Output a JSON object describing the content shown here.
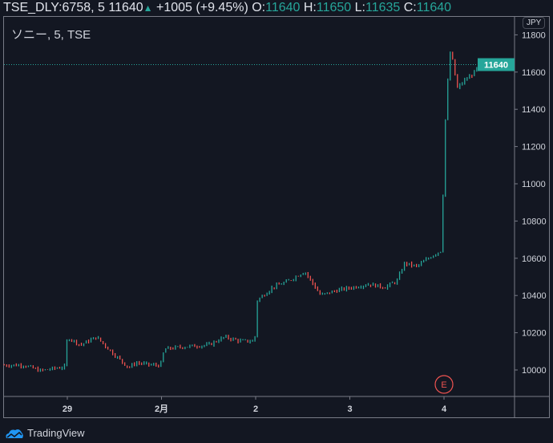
{
  "header": {
    "symbol": "TSE_DLY:6758, 5",
    "last": "11640",
    "change": "+1005 (+9.45%)",
    "o_label": "O:",
    "o": "11640",
    "h_label": "H:",
    "h": "11650",
    "l_label": "L:",
    "l": "11635",
    "c_label": "C:",
    "c": "11640"
  },
  "legend": "ソニー, 5, TSE",
  "currency": "JPY",
  "brand": "TradingView",
  "earnings_marker": "E",
  "colors": {
    "up": "#26a69a",
    "down": "#ef5350",
    "bg": "#131722"
  },
  "chart_data": {
    "type": "ohlc",
    "ylim": [
      9880,
      11890
    ],
    "xlim": [
      -0.67,
      4.8
    ],
    "yticks": [
      10000,
      10200,
      10400,
      10600,
      10800,
      11000,
      11200,
      11400,
      11600,
      11800
    ],
    "xticks": [
      {
        "t": 0,
        "label": "29"
      },
      {
        "t": 1,
        "label": "2月"
      },
      {
        "t": 2,
        "label": "2"
      },
      {
        "t": 3,
        "label": "3"
      },
      {
        "t": 4,
        "label": "4"
      }
    ],
    "last_price": 11640,
    "price_path": [
      [
        -0.67,
        10026
      ],
      [
        -0.46,
        10026
      ],
      [
        -0.29,
        9996
      ],
      [
        -0.03,
        10017
      ],
      [
        0,
        10177
      ],
      [
        0.14,
        10134
      ],
      [
        0.31,
        10177
      ],
      [
        0.48,
        10091
      ],
      [
        0.65,
        10013
      ],
      [
        0.73,
        10039
      ],
      [
        0.9,
        10026
      ],
      [
        0.99,
        10026
      ],
      [
        1.03,
        10112
      ],
      [
        1.24,
        10125
      ],
      [
        1.5,
        10134
      ],
      [
        1.67,
        10177
      ],
      [
        1.84,
        10155
      ],
      [
        1.99,
        10155
      ],
      [
        2.01,
        10371
      ],
      [
        2.18,
        10444
      ],
      [
        2.35,
        10478
      ],
      [
        2.52,
        10530
      ],
      [
        2.69,
        10401
      ],
      [
        2.86,
        10427
      ],
      [
        3.03,
        10444
      ],
      [
        3.2,
        10461
      ],
      [
        3.37,
        10444
      ],
      [
        3.5,
        10478
      ],
      [
        3.58,
        10573
      ],
      [
        3.71,
        10556
      ],
      [
        3.88,
        10616
      ],
      [
        3.97,
        10642
      ],
      [
        4.02,
        11427
      ],
      [
        4.07,
        11728
      ],
      [
        4.14,
        11513
      ],
      [
        4.22,
        11556
      ],
      [
        4.31,
        11591
      ],
      [
        4.39,
        11651
      ]
    ]
  }
}
